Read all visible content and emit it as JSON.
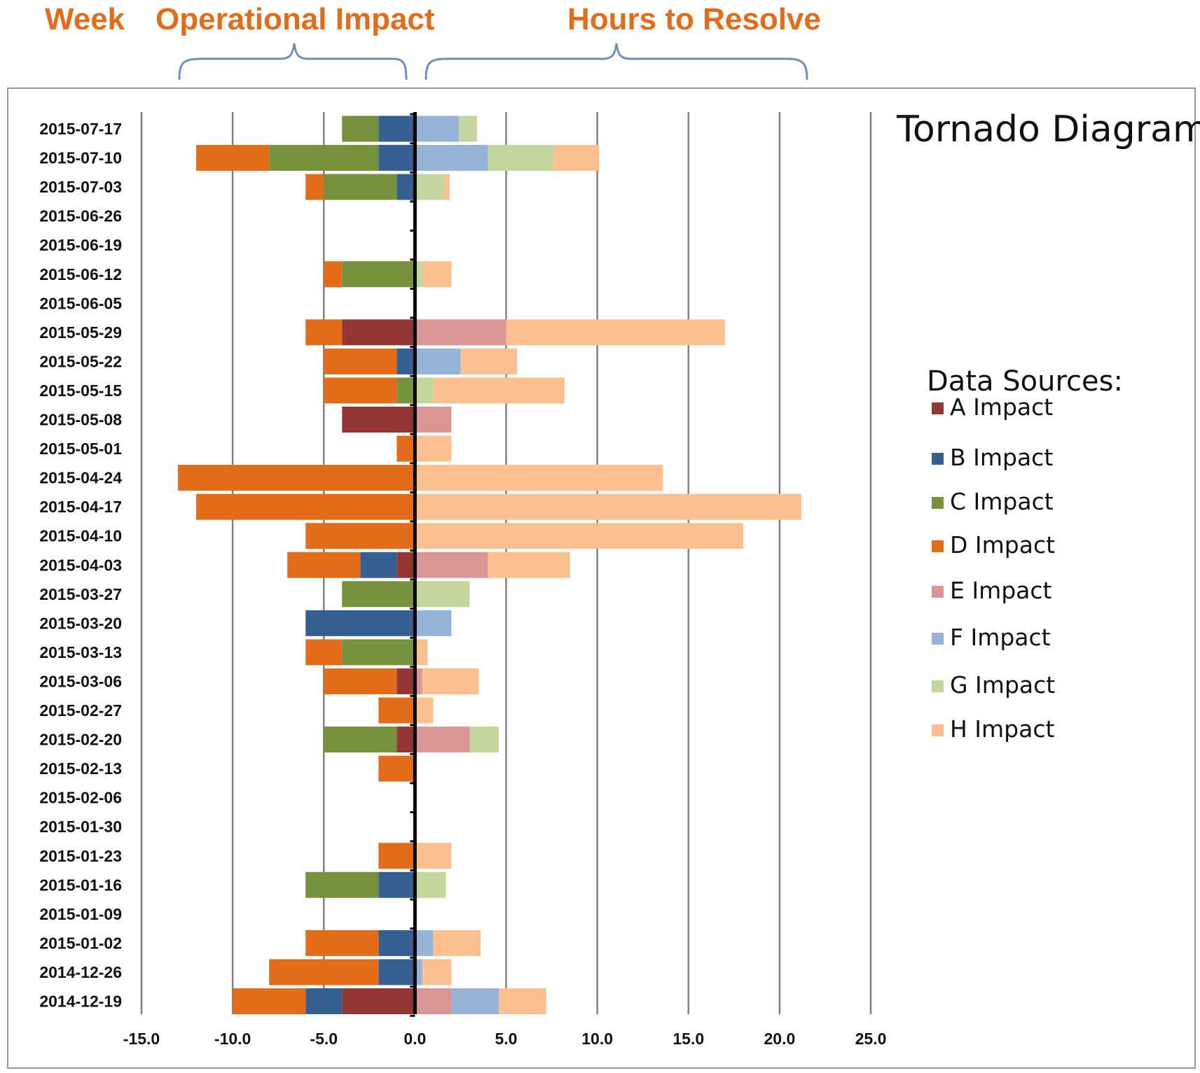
{
  "header": {
    "week_label": "Week",
    "left_label": "Operational Impact",
    "right_label": "Hours to Resolve"
  },
  "colors": {
    "A": "#943634",
    "B": "#365f91",
    "C": "#76923c",
    "D": "#e36c1a",
    "E": "#d99694",
    "F": "#95b3d7",
    "G": "#c3d69b",
    "H": "#fac090",
    "gridline": "#808080",
    "axis": "#000000",
    "header": "#e36c1a",
    "bracket": "#6d8fbd",
    "frame": "#999999"
  },
  "chart_data": {
    "type": "bar",
    "orientation": "horizontal",
    "stacked": true,
    "title": "Tornado Diagram",
    "xlim": [
      -15,
      25
    ],
    "xticks": [
      "-15.0",
      "-10.0",
      "-5.0",
      "0.0",
      "5.0",
      "10.0",
      "15.0",
      "20.0",
      "25.0"
    ],
    "grid": true,
    "legend_title": "Data Sources:",
    "legend_position": "right",
    "categories": [
      "2015-07-17",
      "2015-07-10",
      "2015-07-03",
      "2015-06-26",
      "2015-06-19",
      "2015-06-12",
      "2015-06-05",
      "2015-05-29",
      "2015-05-22",
      "2015-05-15",
      "2015-05-08",
      "2015-05-01",
      "2015-04-24",
      "2015-04-17",
      "2015-04-10",
      "2015-04-03",
      "2015-03-27",
      "2015-03-20",
      "2015-03-13",
      "2015-03-06",
      "2015-02-27",
      "2015-02-20",
      "2015-02-13",
      "2015-02-06",
      "2015-01-30",
      "2015-01-23",
      "2015-01-16",
      "2015-01-09",
      "2015-01-02",
      "2014-12-26",
      "2014-12-19"
    ],
    "series": [
      {
        "name": "A Impact",
        "key": "A",
        "values": [
          0,
          0,
          0,
          0,
          0,
          0,
          0,
          -4,
          0,
          0,
          -4,
          0,
          0,
          0,
          0,
          -1,
          0,
          0,
          0,
          -1,
          0,
          -1,
          0,
          0,
          0,
          0,
          0,
          0,
          0,
          0,
          -4
        ]
      },
      {
        "name": "B Impact",
        "key": "B",
        "values": [
          -2,
          -2,
          -1,
          0,
          0,
          0,
          0,
          0,
          -1,
          0,
          0,
          0,
          0,
          0,
          0,
          -2,
          0,
          -6,
          0,
          0,
          0,
          0,
          0,
          0,
          0,
          0,
          -2,
          0,
          -2,
          -2,
          -2
        ]
      },
      {
        "name": "C Impact",
        "key": "C",
        "values": [
          -2,
          -6,
          -4,
          0,
          0,
          -4,
          0,
          0,
          0,
          -1,
          0,
          0,
          0,
          0,
          0,
          0,
          -4,
          0,
          -4,
          0,
          0,
          -4,
          0,
          0,
          0,
          0,
          -4,
          0,
          0,
          0,
          0
        ]
      },
      {
        "name": "D Impact",
        "key": "D",
        "values": [
          0,
          -4,
          -1,
          0,
          0,
          -1,
          0,
          -2,
          -4,
          -4,
          0,
          -1,
          -13,
          -12,
          -6,
          -4,
          0,
          0,
          -2,
          -4,
          -2,
          0,
          -2,
          0,
          0,
          -2,
          0,
          0,
          -4,
          -6,
          -4
        ]
      },
      {
        "name": "E Impact",
        "key": "E",
        "values": [
          0,
          0,
          0,
          0,
          0,
          0,
          0,
          5,
          0,
          0,
          2,
          0,
          0,
          0,
          0,
          4,
          0,
          0,
          0,
          0.4,
          0,
          3,
          0,
          0,
          0,
          0,
          0,
          0,
          0,
          0,
          2
        ]
      },
      {
        "name": "F Impact",
        "key": "F",
        "values": [
          2.4,
          4,
          0,
          0,
          0,
          0,
          0,
          0,
          2.5,
          0,
          0,
          0,
          0,
          0,
          0,
          0,
          0,
          2,
          0,
          0,
          0,
          0,
          0,
          0,
          0,
          0,
          0,
          0,
          1,
          0.4,
          2.6
        ]
      },
      {
        "name": "G Impact",
        "key": "G",
        "values": [
          1,
          3.6,
          1.6,
          0,
          0,
          0.4,
          0,
          0,
          0,
          1,
          0,
          0,
          0,
          0,
          0,
          0,
          3,
          0,
          0,
          0,
          0,
          1.6,
          0,
          0,
          0,
          0,
          1.7,
          0,
          0,
          0,
          0
        ]
      },
      {
        "name": "H Impact",
        "key": "H",
        "values": [
          0,
          2.5,
          0.3,
          0,
          0,
          1.6,
          0,
          12,
          3.1,
          7.2,
          0,
          2,
          13.6,
          21.2,
          18,
          4.5,
          0,
          0,
          0.7,
          3.1,
          1,
          0,
          0,
          0,
          0,
          2,
          0,
          0,
          2.6,
          1.6,
          2.6
        ]
      }
    ]
  }
}
